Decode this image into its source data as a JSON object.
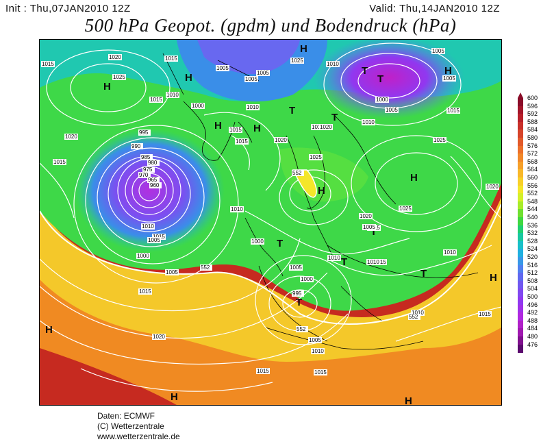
{
  "header": {
    "init": "Init : Thu,07JAN2010 12Z",
    "valid": "Valid: Thu,14JAN2010 12Z",
    "title": "500 hPa Geopot. (gpdm) und Bodendruck (hPa)"
  },
  "footer": {
    "line1": "Daten: ECMWF",
    "line2": "(C) Wetterzentrale",
    "line3": "www.wetterzentrale.de"
  },
  "legend": {
    "unit_levels": [
      "600",
      "596",
      "592",
      "588",
      "584",
      "580",
      "576",
      "572",
      "568",
      "564",
      "560",
      "556",
      "552",
      "548",
      "544",
      "540",
      "536",
      "532",
      "528",
      "524",
      "520",
      "516",
      "512",
      "508",
      "504",
      "500",
      "496",
      "492",
      "488",
      "484",
      "480",
      "476"
    ],
    "colors": [
      "#8a0c28",
      "#a3162a",
      "#b8202a",
      "#c8302a",
      "#d6442a",
      "#e25a2a",
      "#ec702a",
      "#f2882a",
      "#f6a02a",
      "#f8b82a",
      "#f8d02a",
      "#f4e62a",
      "#d4f02a",
      "#a8ec2a",
      "#70e030",
      "#40d840",
      "#20d070",
      "#18c8a0",
      "#18c0c8",
      "#20b0e0",
      "#3898e8",
      "#5080f0",
      "#6068f0",
      "#7058f0",
      "#8048f0",
      "#9038f0",
      "#a030e8",
      "#b028e0",
      "#b020c8",
      "#a018b0",
      "#80108e",
      "#5a0a6e"
    ]
  },
  "map": {
    "pressure_centers": [
      {
        "label": "H"
      },
      {
        "label": "H"
      },
      {
        "label": "H"
      },
      {
        "label": "H"
      },
      {
        "label": "H"
      },
      {
        "label": "H"
      },
      {
        "label": "H"
      },
      {
        "label": "H"
      },
      {
        "label": "H"
      },
      {
        "label": "H"
      },
      {
        "label": "H"
      },
      {
        "label": "H"
      },
      {
        "label": "T"
      },
      {
        "label": "T"
      },
      {
        "label": "T"
      },
      {
        "label": "T"
      },
      {
        "label": "T"
      },
      {
        "label": "T"
      },
      {
        "label": "T"
      },
      {
        "label": "T"
      },
      {
        "label": "T"
      }
    ],
    "isobar_labels": [
      "1015",
      "1015",
      "1020",
      "1025",
      "1010",
      "1015",
      "1000",
      "1005",
      "1005",
      "995",
      "990",
      "985",
      "980",
      "975",
      "970",
      "965",
      "960",
      "1015",
      "1020",
      "1015",
      "1010",
      "1005",
      "1000",
      "1005",
      "1015",
      "1000",
      "1010",
      "1020",
      "1025",
      "1015",
      "1010",
      "1005",
      "1015",
      "1025",
      "1010",
      "1005",
      "1000",
      "1005",
      "1005",
      "1010",
      "1015",
      "1020",
      "1025",
      "1025",
      "1020",
      "1015",
      "1010",
      "1015",
      "1005",
      "1000",
      "995",
      "1005",
      "1010",
      "1015",
      "1010",
      "1015",
      "1020",
      "1015",
      "1010",
      "1020",
      "1005",
      "1010",
      "1015"
    ],
    "geopotential_labels": [
      "552",
      "552",
      "552",
      "552"
    ]
  }
}
